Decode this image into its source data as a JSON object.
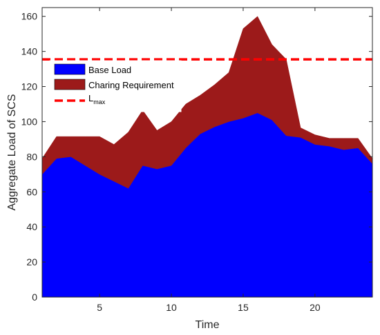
{
  "chart_data": {
    "type": "area",
    "stacked": true,
    "xlabel": "Time",
    "ylabel": "Aggregate Load of SCS",
    "xlim": [
      1,
      24
    ],
    "ylim": [
      0,
      165
    ],
    "xticks": [
      5,
      10,
      15,
      20
    ],
    "yticks": [
      0,
      20,
      40,
      60,
      80,
      100,
      120,
      140,
      160
    ],
    "x": [
      1,
      2,
      3,
      4,
      5,
      6,
      7,
      8,
      9,
      10,
      11,
      12,
      13,
      14,
      15,
      16,
      17,
      18,
      19,
      20,
      21,
      22,
      23,
      24
    ],
    "series": [
      {
        "name": "Base Load",
        "color": "#0000ff",
        "values": [
          70,
          79,
          80,
          75,
          70,
          66,
          62,
          75,
          73,
          75,
          85,
          93,
          97,
          100,
          102,
          105,
          101,
          92,
          91,
          87,
          86,
          84,
          85,
          76
        ]
      },
      {
        "name": "Charing Requirement",
        "color": "#9c1a1a",
        "values": [
          9,
          12.5,
          11.5,
          16.5,
          21.5,
          21,
          32,
          31.5,
          22,
          25,
          25,
          22,
          24,
          28,
          51,
          55,
          43,
          43.5,
          5.5,
          5.5,
          4.5,
          6.5,
          5.5,
          3
        ]
      }
    ],
    "reference_line": {
      "name": "L",
      "name_subscript": "max",
      "value": 135.5,
      "color": "#ff0000",
      "style": "dashed"
    },
    "legend": {
      "placement": "top-left"
    },
    "grid": false
  }
}
